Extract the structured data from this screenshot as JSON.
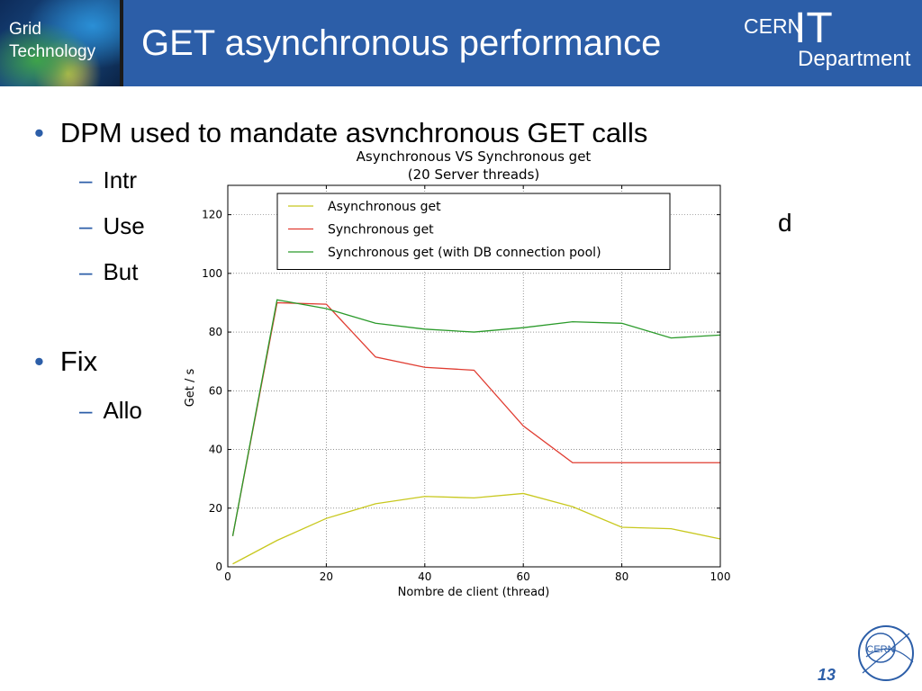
{
  "header": {
    "grid_line1": "Grid",
    "grid_line2": "Technology",
    "title": "GET asynchronous performance",
    "cern_word": "CERN",
    "it_word": "IT",
    "dept_word": "Department"
  },
  "bullets": {
    "b1": "DPM used to mandate asynchronous GET calls",
    "b1_subs": [
      "Intr",
      "Use",
      "But"
    ],
    "b1_trail": "d",
    "b2": "Fix",
    "b2_subs": [
      "Allo"
    ]
  },
  "footer": {
    "page_number": "13",
    "badge_text": "CERN"
  },
  "colors": {
    "header_bg": "#2c5ea8",
    "bullet_accent": "#2c5ea8",
    "async": "#c8c81e",
    "sync": "#e03c31",
    "sync_pool": "#2a9a2a"
  },
  "chart_data": {
    "type": "line",
    "title": "Asynchronous VS Synchronous get",
    "subtitle": "(20 Server threads)",
    "xlabel": "Nombre de client (thread)",
    "ylabel": "Get / s",
    "xlim": [
      0,
      100
    ],
    "ylim": [
      0,
      130
    ],
    "xticks": [
      0,
      20,
      40,
      60,
      80,
      100
    ],
    "yticks": [
      0,
      20,
      40,
      60,
      80,
      100,
      120
    ],
    "grid": true,
    "legend_position": "top-center",
    "x": [
      1,
      10,
      20,
      30,
      40,
      50,
      60,
      70,
      80,
      90,
      100
    ],
    "series": [
      {
        "name": "Asynchronous get",
        "color": "#c8c81e",
        "values": [
          1,
          9,
          16.5,
          21.5,
          24,
          23.5,
          25,
          20.5,
          13.5,
          13,
          9.5
        ]
      },
      {
        "name": "Synchronous get",
        "color": "#e03c31",
        "values": [
          10.5,
          90,
          89.5,
          71.5,
          68,
          67,
          48,
          35.5,
          35.5,
          35.5,
          35.5
        ]
      },
      {
        "name": "Synchronous get (with DB connection pool)",
        "color": "#2a9a2a",
        "values": [
          10.5,
          91,
          88,
          83,
          81,
          80,
          81.5,
          83.5,
          83,
          78,
          79
        ]
      }
    ]
  }
}
